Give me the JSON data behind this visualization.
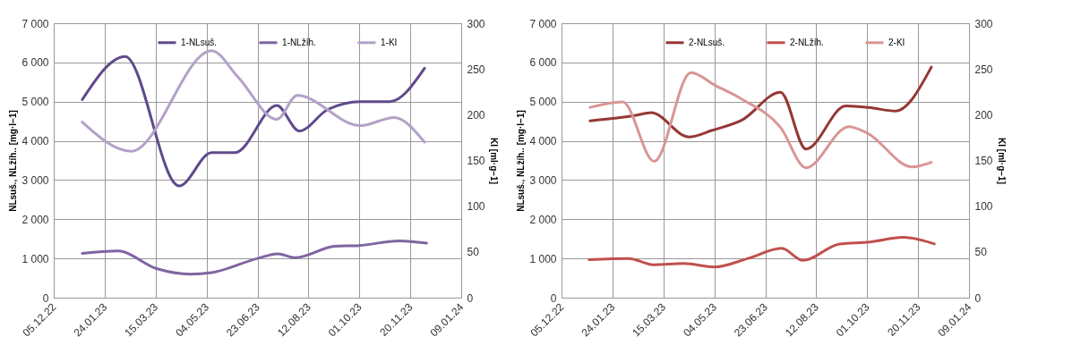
{
  "chart_data": [
    {
      "type": "line",
      "ylabel": "NLsuš., NLžíh.. [mg·l−1]",
      "y2label": "KI [ml·g−1]",
      "xlim": [
        "2022-12-05",
        "2024-01-09"
      ],
      "xticks": [
        {
          "value": "2022-12-05",
          "label": "05.12.22"
        },
        {
          "value": "2023-01-24",
          "label": "24.01.23"
        },
        {
          "value": "2023-03-15",
          "label": "15.03.23"
        },
        {
          "value": "2023-05-04",
          "label": "04.05.23"
        },
        {
          "value": "2023-06-23",
          "label": "23.06.23"
        },
        {
          "value": "2023-08-12",
          "label": "12.08.23"
        },
        {
          "value": "2023-10-01",
          "label": "01.10.23"
        },
        {
          "value": "2023-11-20",
          "label": "20.11.23"
        },
        {
          "value": "2024-01-09",
          "label": "09.01.24"
        }
      ],
      "ylim": [
        0,
        7000
      ],
      "yticks": [
        0,
        {
          "value": 1000,
          "label": "1 000"
        },
        {
          "value": 2000,
          "label": "2 000"
        },
        {
          "value": 3000,
          "label": "3 000"
        },
        {
          "value": 4000,
          "label": "4 000"
        },
        {
          "value": 5000,
          "label": "5 000"
        },
        {
          "value": 6000,
          "label": "6 000"
        },
        {
          "value": 7000,
          "label": "7 000"
        }
      ],
      "y2lim": [
        0,
        300
      ],
      "y2ticks": [
        0,
        50,
        100,
        150,
        200,
        250,
        300
      ],
      "grid": true,
      "legend": "top",
      "series": [
        {
          "name": "1-NLsuš.",
          "color": "#5f4a8b",
          "x": [
            "2023-01-02",
            "2023-02-13",
            "2023-04-07",
            "2023-05-09",
            "2023-06-01",
            "2023-07-12",
            "2023-08-03",
            "2023-08-31",
            "2023-10-02",
            "2023-10-31",
            "2023-12-04"
          ],
          "values": [
            5050,
            6150,
            2850,
            3700,
            3700,
            4900,
            4250,
            4800,
            5000,
            5000,
            5850
          ]
        },
        {
          "name": "1-NLžíh.",
          "color": "#8064a2",
          "x": [
            "2023-01-02",
            "2023-02-06",
            "2023-03-16",
            "2023-04-18",
            "2023-05-09",
            "2023-06-23",
            "2023-07-13",
            "2023-07-30",
            "2023-09-07",
            "2023-10-01",
            "2023-11-09",
            "2023-12-06"
          ],
          "values": [
            1130,
            1190,
            740,
            600,
            640,
            1000,
            1120,
            1020,
            1310,
            1330,
            1450,
            1390
          ]
        },
        {
          "name": "1-KI",
          "color": "#b3a2c7",
          "axis": "y2",
          "x": [
            "2023-01-02",
            "2023-02-19",
            "2023-05-09",
            "2023-06-04",
            "2023-07-12",
            "2023-08-01",
            "2023-10-02",
            "2023-11-04",
            "2023-12-04"
          ],
          "values": [
            192,
            160,
            270,
            241,
            195,
            221,
            188,
            197,
            170
          ]
        }
      ]
    },
    {
      "type": "line",
      "ylabel": "NLsuš., NLžíh.. [mg·l−1]",
      "y2label": "KI [ml·g−1]",
      "xlim": [
        "2022-12-05",
        "2024-01-09"
      ],
      "xticks": [
        {
          "value": "2022-12-05",
          "label": "05.12.22"
        },
        {
          "value": "2023-01-24",
          "label": "24.01.23"
        },
        {
          "value": "2023-03-15",
          "label": "15.03.23"
        },
        {
          "value": "2023-05-04",
          "label": "04.05.23"
        },
        {
          "value": "2023-06-23",
          "label": "23.06.23"
        },
        {
          "value": "2023-08-12",
          "label": "12.08.23"
        },
        {
          "value": "2023-10-01",
          "label": "01.10.23"
        },
        {
          "value": "2023-11-20",
          "label": "20.11.23"
        },
        {
          "value": "2024-01-09",
          "label": "09.01.24"
        }
      ],
      "ylim": [
        0,
        7000
      ],
      "yticks": [
        0,
        {
          "value": 1000,
          "label": "1 000"
        },
        {
          "value": 2000,
          "label": "2 000"
        },
        {
          "value": 3000,
          "label": "3 000"
        },
        {
          "value": 4000,
          "label": "4 000"
        },
        {
          "value": 5000,
          "label": "5 000"
        },
        {
          "value": 6000,
          "label": "6 000"
        },
        {
          "value": 7000,
          "label": "7 000"
        }
      ],
      "y2lim": [
        0,
        300
      ],
      "y2ticks": [
        0,
        50,
        100,
        150,
        200,
        250,
        300
      ],
      "grid": true,
      "legend": "top",
      "series": [
        {
          "name": "2-NLsuš.",
          "color": "#953735",
          "x": [
            "2023-01-02",
            "2023-02-16",
            "2023-03-03",
            "2023-04-09",
            "2023-05-02",
            "2023-05-31",
            "2023-07-08",
            "2023-08-02",
            "2023-09-10",
            "2023-10-03",
            "2023-10-29",
            "2023-12-03"
          ],
          "values": [
            4510,
            4650,
            4720,
            4100,
            4270,
            4530,
            5240,
            3790,
            4890,
            4850,
            4760,
            5880
          ]
        },
        {
          "name": "2-NLžíh.",
          "color": "#c0504d",
          "x": [
            "2023-01-01",
            "2023-02-09",
            "2023-03-05",
            "2023-04-04",
            "2023-05-04",
            "2023-06-06",
            "2023-07-09",
            "2023-07-30",
            "2023-09-04",
            "2023-10-04",
            "2023-11-05",
            "2023-12-06"
          ],
          "values": [
            970,
            1000,
            840,
            870,
            780,
            1000,
            1260,
            950,
            1370,
            1420,
            1540,
            1370
          ]
        },
        {
          "name": "2-KI",
          "color": "#d99694",
          "axis": "y2",
          "x": [
            "2023-01-02",
            "2023-02-03",
            "2023-03-06",
            "2023-04-11",
            "2023-05-05",
            "2023-05-31",
            "2023-07-08",
            "2023-08-02",
            "2023-09-13",
            "2023-10-01",
            "2023-11-14",
            "2023-12-03"
          ],
          "values": [
            208,
            214,
            149,
            246,
            232,
            217,
            186,
            142,
            187,
            180,
            143,
            148
          ]
        }
      ]
    }
  ]
}
